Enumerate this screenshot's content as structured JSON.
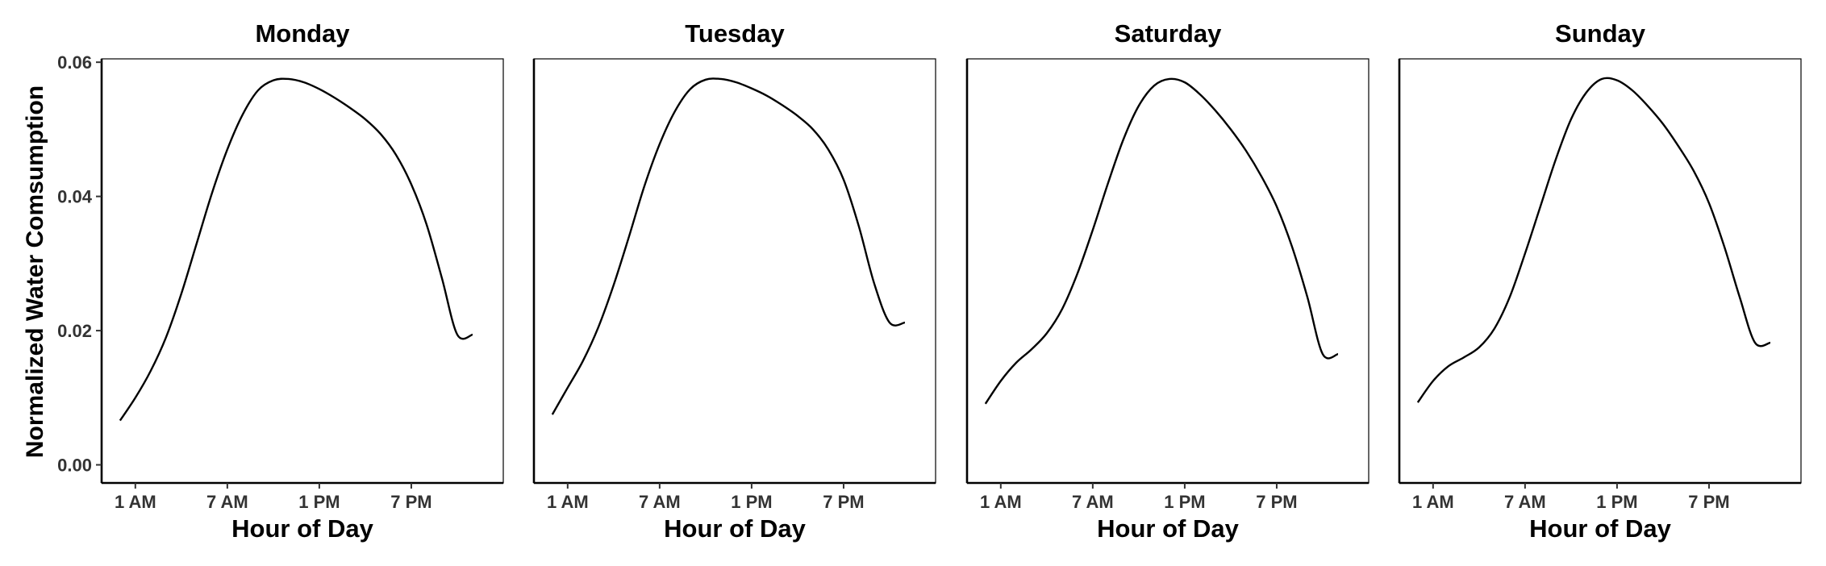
{
  "chart_data": {
    "type": "line",
    "ylabel": "Normalized Water Comsumption",
    "xlabel": "Hour of Day",
    "ylim": [
      -0.0027,
      0.0605
    ],
    "xlim": [
      -1.2,
      25.0
    ],
    "yticks": [
      0.0,
      0.02,
      0.04,
      0.06
    ],
    "ytick_labels": [
      "0.00",
      "0.02",
      "0.04",
      "0.06"
    ],
    "xticks": [
      1,
      7,
      13,
      19
    ],
    "xtick_labels": [
      "1 AM",
      "7 AM",
      "1 PM",
      "7 PM"
    ],
    "grid": false,
    "panels": [
      {
        "title": "Monday",
        "series": [
          {
            "x": [
              0,
              1,
              2,
              3,
              4,
              5,
              6,
              7,
              8,
              9,
              10,
              11,
              12,
              13,
              14,
              15,
              16,
              17,
              18,
              19,
              20,
              21,
              22,
              23
            ],
            "values": [
              0.0066,
              0.01,
              0.014,
              0.019,
              0.0255,
              0.033,
              0.0405,
              0.047,
              0.0522,
              0.0558,
              0.0573,
              0.0575,
              0.057,
              0.056,
              0.0547,
              0.0532,
              0.0515,
              0.0493,
              0.0462,
              0.0418,
              0.0358,
              0.0278,
              0.0194,
              0.0194
            ]
          }
        ]
      },
      {
        "title": "Tuesday",
        "series": [
          {
            "x": [
              0,
              1,
              2,
              3,
              4,
              5,
              6,
              7,
              8,
              9,
              10,
              11,
              12,
              13,
              14,
              15,
              16,
              17,
              18,
              19,
              20,
              21,
              22,
              23
            ],
            "values": [
              0.0075,
              0.0115,
              0.0155,
              0.0205,
              0.0268,
              0.034,
              0.0415,
              0.0478,
              0.0527,
              0.056,
              0.0574,
              0.0575,
              0.057,
              0.0561,
              0.055,
              0.0536,
              0.052,
              0.05,
              0.047,
              0.0425,
              0.0355,
              0.027,
              0.0212,
              0.0212
            ]
          }
        ]
      },
      {
        "title": "Saturday",
        "series": [
          {
            "x": [
              0,
              1,
              2,
              3,
              4,
              5,
              6,
              7,
              8,
              9,
              10,
              11,
              12,
              13,
              14,
              15,
              16,
              17,
              18,
              19,
              20,
              21,
              22,
              23
            ],
            "values": [
              0.0091,
              0.0125,
              0.0152,
              0.0172,
              0.0196,
              0.0232,
              0.0285,
              0.035,
              0.042,
              0.0485,
              0.0535,
              0.0565,
              0.0575,
              0.057,
              0.0552,
              0.0528,
              0.05,
              0.0468,
              0.043,
              0.0385,
              0.0325,
              0.025,
              0.0165,
              0.0165
            ]
          }
        ]
      },
      {
        "title": "Sunday",
        "series": [
          {
            "x": [
              0,
              1,
              2,
              3,
              4,
              5,
              6,
              7,
              8,
              9,
              10,
              11,
              12,
              13,
              14,
              15,
              16,
              17,
              18,
              19,
              20,
              21,
              22,
              23
            ],
            "values": [
              0.0093,
              0.0125,
              0.0147,
              0.016,
              0.0175,
              0.0203,
              0.025,
              0.0315,
              0.0385,
              0.0455,
              0.0515,
              0.0555,
              0.0575,
              0.0573,
              0.0558,
              0.0535,
              0.0508,
              0.0475,
              0.0438,
              0.039,
              0.0325,
              0.025,
              0.0182,
              0.0182
            ]
          }
        ]
      }
    ]
  }
}
